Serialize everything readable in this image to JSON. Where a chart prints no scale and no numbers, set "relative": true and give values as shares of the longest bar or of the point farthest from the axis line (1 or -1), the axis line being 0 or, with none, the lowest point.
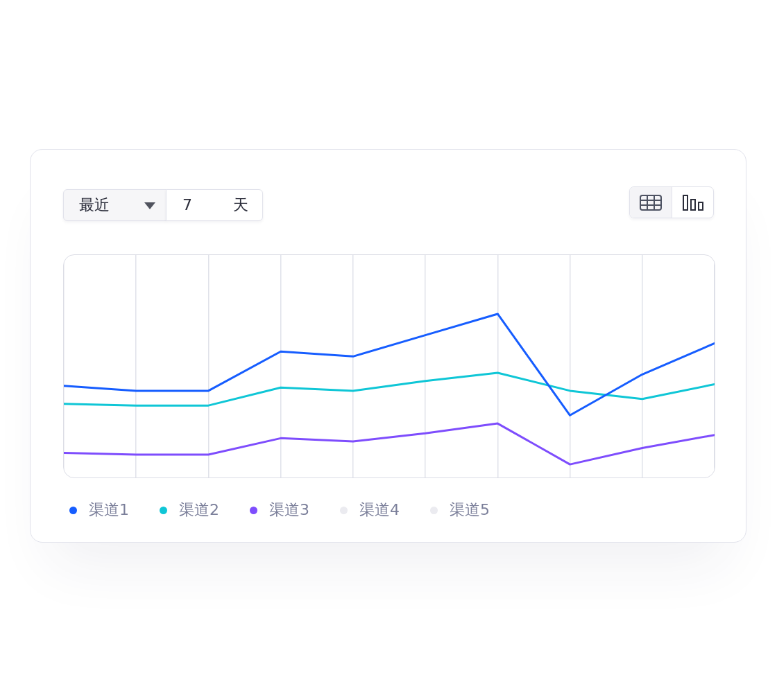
{
  "chart_data": {
    "type": "line",
    "relative": true,
    "categories": [
      null,
      null,
      null,
      null,
      null,
      null,
      null,
      null,
      null,
      null
    ],
    "series": [
      {
        "name": "渠道1",
        "color": "#165dff",
        "values": [
          0.56,
          0.53,
          0.53,
          0.77,
          0.74,
          0.87,
          1,
          0.38,
          0.63,
          0.82
        ]
      },
      {
        "name": "渠道2",
        "color": "#0fc6d6",
        "values": [
          0.45,
          0.44,
          0.44,
          0.55,
          0.53,
          0.59,
          0.64,
          0.53,
          0.48,
          0.57
        ]
      },
      {
        "name": "渠道3",
        "color": "#7e4dfd",
        "values": [
          0.15,
          0.14,
          0.14,
          0.24,
          0.22,
          0.27,
          0.33,
          0.08,
          0.18,
          0.26
        ]
      },
      {
        "name": "渠道4",
        "color": "#ebebf0",
        "values": [
          null,
          null,
          null,
          null,
          null,
          null,
          null,
          null,
          null,
          null
        ]
      },
      {
        "name": "渠道5",
        "color": "#ebebf0",
        "values": [
          null,
          null,
          null,
          null,
          null,
          null,
          null,
          null,
          null,
          null
        ]
      }
    ],
    "grid": "x",
    "legend": "bottom left",
    "annotations": [
      "最近",
      "7",
      "天"
    ]
  }
}
